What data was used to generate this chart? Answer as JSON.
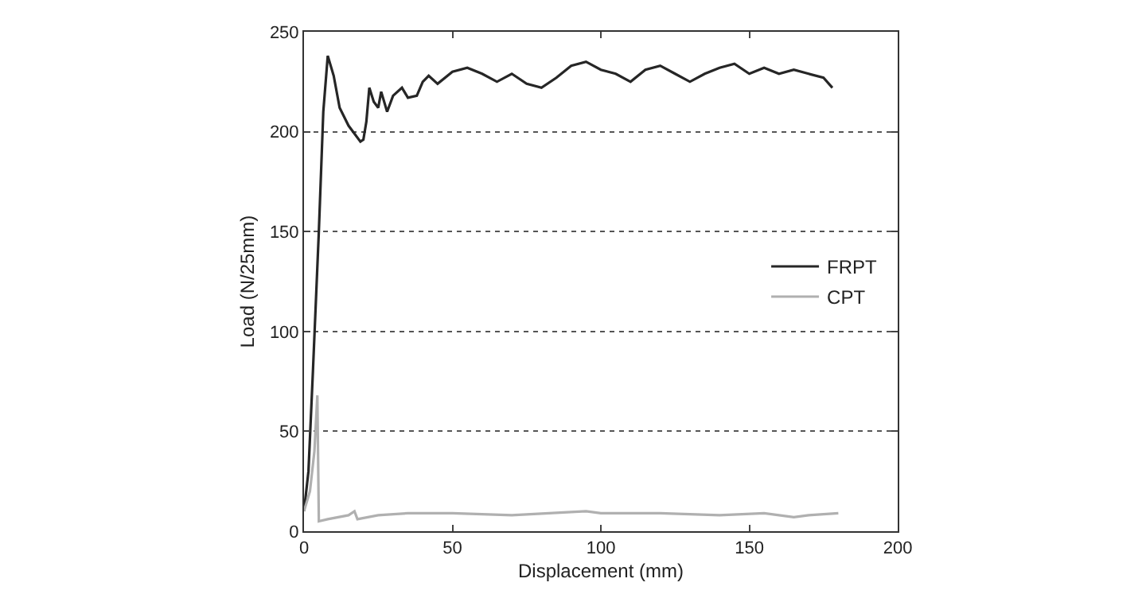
{
  "chart_data": {
    "type": "line",
    "xlabel": "Displacement (mm)",
    "ylabel": "Load (N/25mm)",
    "xlim": [
      0,
      200
    ],
    "xticks": [
      0,
      50,
      100,
      150,
      200
    ],
    "ylim": [
      0,
      250
    ],
    "yticks": [
      0,
      50,
      100,
      150,
      200,
      250
    ],
    "grid": "y",
    "legend": "right",
    "line_style": "solid",
    "marker": "none",
    "series": [
      {
        "name": "FRPT",
        "color": "#262626",
        "x": [
          0,
          1.5,
          3,
          5,
          6.5,
          8,
          10,
          12,
          15,
          19,
          20,
          21,
          22,
          23.5,
          25,
          26,
          28,
          30,
          33,
          35,
          38,
          40,
          42,
          45,
          50,
          55,
          60,
          65,
          70,
          75,
          80,
          85,
          90,
          95,
          100,
          105,
          110,
          115,
          120,
          125,
          130,
          135,
          140,
          145,
          150,
          155,
          160,
          165,
          170,
          175,
          178
        ],
        "values": [
          10,
          30,
          80,
          150,
          210,
          238,
          228,
          212,
          203,
          195,
          196,
          205,
          222,
          215,
          212,
          220,
          210,
          218,
          222,
          217,
          218,
          225,
          228,
          224,
          230,
          232,
          229,
          225,
          229,
          224,
          222,
          227,
          233,
          235,
          231,
          229,
          225,
          231,
          233,
          229,
          225,
          229,
          232,
          234,
          229,
          232,
          229,
          231,
          229,
          227,
          222
        ]
      },
      {
        "name": "CPT",
        "color": "#b0b0b0",
        "x": [
          0,
          2,
          3.5,
          4.5,
          5,
          8,
          15,
          17,
          18,
          25,
          35,
          50,
          70,
          95,
          100,
          120,
          140,
          155,
          165,
          170,
          180
        ],
        "values": [
          10,
          20,
          40,
          68,
          5,
          6,
          8,
          10,
          6,
          8,
          9,
          9,
          8,
          10,
          9,
          9,
          8,
          9,
          7,
          8,
          9
        ]
      }
    ]
  }
}
